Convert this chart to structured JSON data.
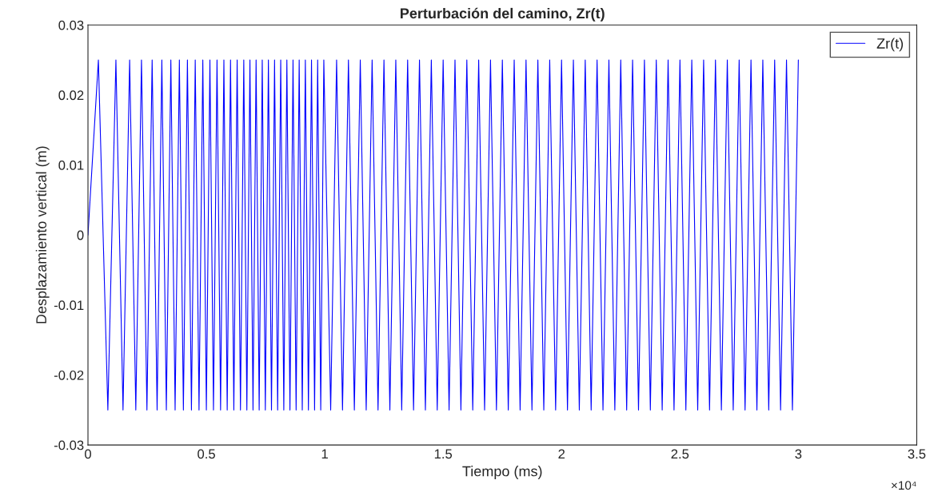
{
  "chart_data": {
    "type": "line",
    "title": "Perturbación del camino, Zr(t)",
    "xlabel": "Tiempo (ms)",
    "ylabel": "Desplazamiento vertical (m)",
    "annotations": [
      "×10⁴"
    ],
    "x": [
      0,
      0.044,
      0.084,
      0.118,
      0.148,
      0.176,
      0.202,
      0.226,
      0.249,
      0.271,
      0.292,
      0.312,
      0.331,
      0.35,
      0.368,
      0.386,
      0.403,
      0.42,
      0.437,
      0.453,
      0.469,
      0.485,
      0.5,
      0.515,
      0.53,
      0.545,
      0.56,
      0.574,
      0.588,
      0.602,
      0.616,
      0.63,
      0.644,
      0.658,
      0.671,
      0.684,
      0.697,
      0.71,
      0.723,
      0.736,
      0.749,
      0.762,
      0.775,
      0.788,
      0.801,
      0.814,
      0.827,
      0.84,
      0.853,
      0.866,
      0.879,
      0.892,
      0.905,
      0.918,
      0.931,
      0.944,
      0.957,
      0.97,
      0.983,
      0.996,
      1.025,
      1.05,
      1.075,
      1.1,
      1.125,
      1.15,
      1.175,
      1.2,
      1.225,
      1.25,
      1.275,
      1.3,
      1.325,
      1.35,
      1.375,
      1.4,
      1.425,
      1.45,
      1.475,
      1.5,
      1.525,
      1.55,
      1.575,
      1.6,
      1.625,
      1.65,
      1.675,
      1.7,
      1.725,
      1.75,
      1.775,
      1.8,
      1.825,
      1.85,
      1.875,
      1.9,
      1.925,
      1.95,
      1.975,
      2,
      2.025,
      2.05,
      2.075,
      2.1,
      2.125,
      2.15,
      2.175,
      2.2,
      2.225,
      2.25,
      2.275,
      2.3,
      2.325,
      2.35,
      2.375,
      2.4,
      2.425,
      2.45,
      2.475,
      2.5,
      2.525,
      2.55,
      2.575,
      2.6,
      2.625,
      2.65,
      2.675,
      2.7,
      2.725,
      2.75,
      2.775,
      2.8,
      2.825,
      2.85,
      2.875,
      2.9,
      2.925,
      2.95,
      2.975,
      3
    ],
    "series": [
      {
        "name": "Zr(t)",
        "color": "#0000ff",
        "values": [
          0,
          0.025,
          -0.025,
          0.025,
          -0.025,
          0.025,
          -0.025,
          0.025,
          -0.025,
          0.025,
          -0.025,
          0.025,
          -0.025,
          0.025,
          -0.025,
          0.025,
          -0.025,
          0.025,
          -0.025,
          0.025,
          -0.025,
          0.025,
          -0.025,
          0.025,
          -0.025,
          0.025,
          -0.025,
          0.025,
          -0.025,
          0.025,
          -0.025,
          0.025,
          -0.025,
          0.025,
          -0.025,
          0.025,
          -0.025,
          0.025,
          -0.025,
          0.025,
          -0.025,
          0.025,
          -0.025,
          0.025,
          -0.025,
          0.025,
          -0.025,
          0.025,
          -0.025,
          0.025,
          -0.025,
          0.025,
          -0.025,
          0.025,
          -0.025,
          0.025,
          -0.025,
          0.025,
          -0.025,
          0.025,
          -0.025,
          0.025,
          -0.025,
          0.025,
          -0.025,
          0.025,
          -0.025,
          0.025,
          -0.025,
          0.025,
          -0.025,
          0.025,
          -0.025,
          0.025,
          -0.025,
          0.025,
          -0.025,
          0.025,
          -0.025,
          0.025,
          -0.025,
          0.025,
          -0.025,
          0.025,
          -0.025,
          0.025,
          -0.025,
          0.025,
          -0.025,
          0.025,
          -0.025,
          0.025,
          -0.025,
          0.025,
          -0.025,
          0.025,
          -0.025,
          0.025,
          -0.025,
          0.025,
          -0.025,
          0.025,
          -0.025,
          0.025,
          -0.025,
          0.025,
          -0.025,
          0.025,
          -0.025,
          0.025,
          -0.025,
          0.025,
          -0.025,
          0.025,
          -0.025,
          0.025,
          -0.025,
          0.025,
          -0.025,
          0.025,
          -0.025,
          0.025,
          -0.025,
          0.025,
          -0.025,
          0.025,
          -0.025,
          0.025,
          -0.025,
          0.025,
          -0.025,
          0.025,
          -0.025,
          0.025,
          -0.025,
          0.025,
          -0.025,
          0.025,
          -0.025,
          0.025
        ]
      }
    ],
    "xlim": [
      0,
      3.5
    ],
    "xticks": [
      0,
      0.5,
      1,
      1.5,
      2,
      2.5,
      3,
      3.5
    ],
    "ylim": [
      -0.03,
      0.03
    ],
    "yticks": [
      -0.03,
      -0.02,
      -0.01,
      0,
      0.01,
      0.02,
      0.03
    ],
    "grid": false,
    "legend": "top right",
    "line_style": "solid",
    "marker": "none"
  }
}
